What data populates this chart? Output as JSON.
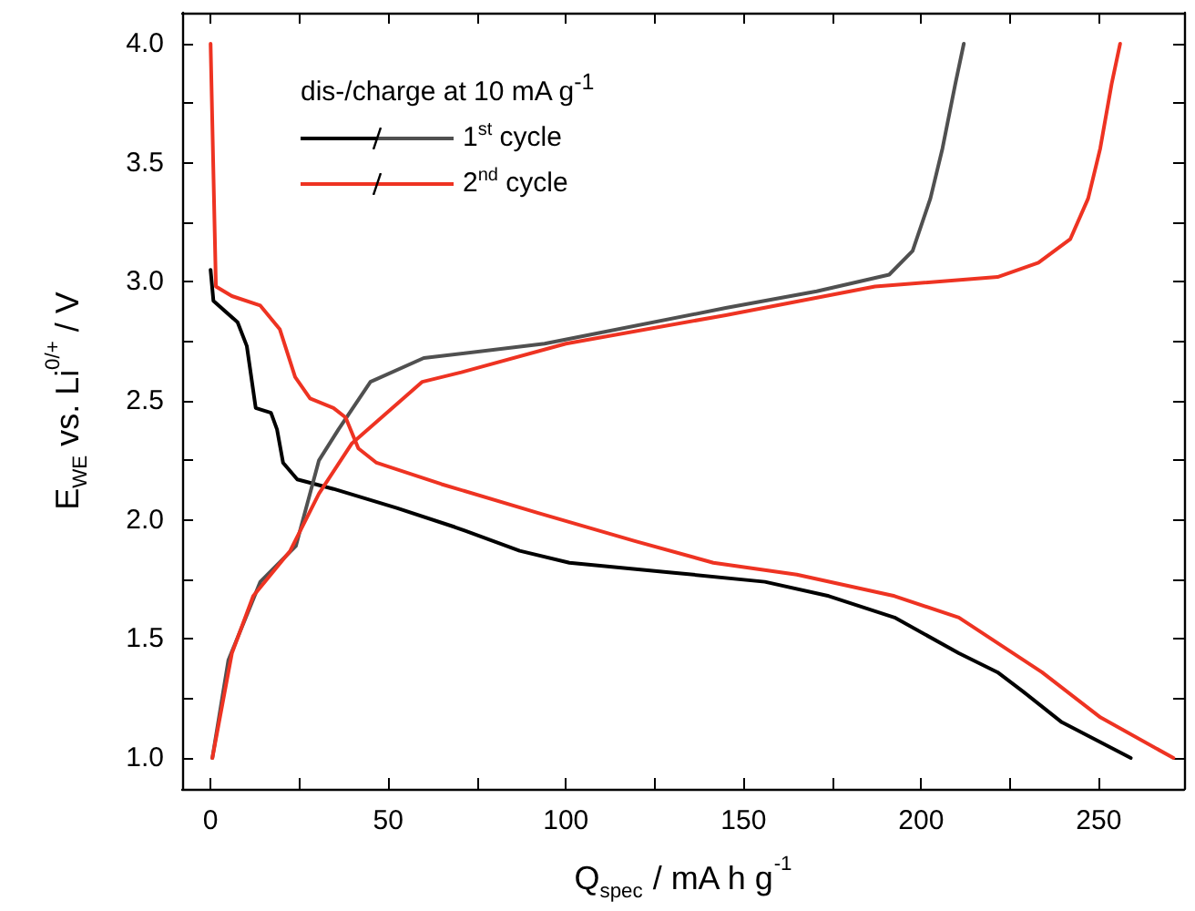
{
  "chart_data": {
    "type": "line",
    "xlabel": "Q$_{spec}$ / mA h g$^{-1}$",
    "ylabel": "E$_{WE}$ vs. Li$^{0/+}$ / V",
    "legend_title": "dis-/charge at 10 mA g$^{-1}$",
    "legend": "top left",
    "grid": false,
    "marker": "none",
    "line_style": "solid",
    "xlim": [
      -8,
      274
    ],
    "ylim": [
      0.87,
      4.13
    ],
    "xticks": [
      0,
      {
        "value": 25,
        "label": null
      },
      50,
      {
        "value": 75,
        "label": null
      },
      100,
      {
        "value": 125,
        "label": null
      },
      150,
      {
        "value": 175,
        "label": null
      },
      200,
      {
        "value": 225,
        "label": null
      },
      250
    ],
    "yticks": [
      {
        "value": 1,
        "label": "1.0"
      },
      {
        "value": 1.25,
        "label": null
      },
      {
        "value": 1.5,
        "label": "1.5"
      },
      {
        "value": 1.75,
        "label": null
      },
      {
        "value": 2,
        "label": "2.0"
      },
      {
        "value": 2.25,
        "label": null
      },
      {
        "value": 2.5,
        "label": "2.5"
      },
      {
        "value": 2.75,
        "label": null
      },
      {
        "value": 3,
        "label": "3.0"
      },
      {
        "value": 3.25,
        "label": null
      },
      {
        "value": 3.5,
        "label": "3.5"
      },
      {
        "value": 3.75,
        "label": null
      },
      {
        "value": 4,
        "label": "4.0"
      }
    ],
    "series": [
      {
        "color": "#000000",
        "x": [
          0,
          0.8,
          7.6,
          10.2,
          12.7,
          17,
          18.7,
          20.4,
          24.4,
          34.6,
          52.4,
          68.7,
          87,
          101,
          129,
          156,
          174,
          192.5,
          210.6,
          221.5,
          228.6,
          239.6,
          259
        ],
        "values": [
          3.05,
          2.92,
          2.83,
          2.73,
          2.47,
          2.45,
          2.38,
          2.24,
          2.17,
          2.13,
          2.05,
          1.97,
          1.87,
          1.82,
          1.78,
          1.74,
          1.68,
          1.59,
          1.44,
          1.36,
          1.28,
          1.15,
          1.0
        ]
      },
      {
        "name": "1$^{st}$ cycle",
        "color": "#505050",
        "x": [
          0.5,
          5,
          14,
          24,
          30.5,
          36,
          45,
          60,
          94,
          145,
          170.6,
          191,
          197.6,
          202.6,
          206,
          209.6,
          212
        ],
        "values": [
          1.0,
          1.41,
          1.74,
          1.89,
          2.25,
          2.38,
          2.58,
          2.68,
          2.74,
          2.89,
          2.96,
          3.03,
          3.13,
          3.35,
          3.56,
          3.83,
          4.0
        ]
      },
      {
        "color": "#ee3322",
        "x": [
          0,
          1.5,
          6,
          14,
          19.5,
          23.8,
          28,
          34.6,
          38,
          41.6,
          46.7,
          65,
          92,
          119.6,
          141.5,
          165,
          192.5,
          210.6,
          234,
          250.5,
          271
        ],
        "values": [
          4.0,
          2.98,
          2.94,
          2.9,
          2.8,
          2.6,
          2.51,
          2.47,
          2.43,
          2.3,
          2.24,
          2.15,
          2.03,
          1.91,
          1.82,
          1.77,
          1.68,
          1.59,
          1.36,
          1.17,
          1.0
        ]
      },
      {
        "name": "2$^{nd}$ cycle",
        "color": "#ee3322",
        "x": [
          0.5,
          6,
          12,
          22.4,
          30.5,
          39.7,
          59.6,
          70.6,
          100,
          145,
          187,
          221.5,
          233,
          242,
          247,
          250.4,
          253.6,
          256
        ],
        "values": [
          1.0,
          1.44,
          1.68,
          1.87,
          2.11,
          2.32,
          2.58,
          2.62,
          2.74,
          2.86,
          2.98,
          3.02,
          3.08,
          3.18,
          3.35,
          3.56,
          3.83,
          4.0
        ]
      }
    ]
  }
}
